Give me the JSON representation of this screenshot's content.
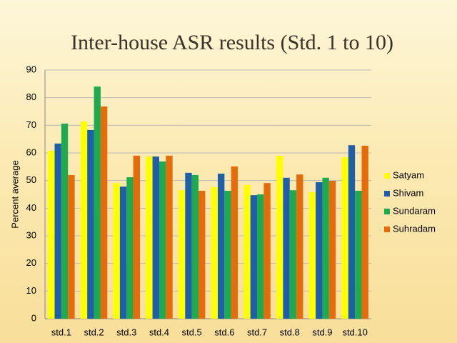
{
  "chart_data": {
    "type": "bar",
    "title": "Inter-house ASR results (Std. 1 to 10)",
    "y_label": "Percent  average",
    "categories": [
      "std.1",
      "std.2",
      "std.3",
      "std.4",
      "std.5",
      "std.6",
      "std.7",
      "std.8",
      "std.9",
      "std.10"
    ],
    "series": [
      {
        "name": "Satyam",
        "color": "#ffff00",
        "values": [
          60.8,
          71.4,
          49.1,
          58.7,
          46.5,
          47.6,
          48.4,
          59,
          45.8,
          58.4
        ]
      },
      {
        "name": "Shivam",
        "color": "#1f5fa8",
        "values": [
          63.4,
          68.3,
          47.8,
          58.7,
          52.8,
          52.5,
          44.7,
          51,
          49.4,
          62.8
        ]
      },
      {
        "name": "Sundaram",
        "color": "#1faa50",
        "values": [
          70.6,
          84,
          51.2,
          56.9,
          52,
          46.3,
          45,
          46.5,
          51,
          46.3
        ]
      },
      {
        "name": "Suhradam",
        "color": "#e46c0a",
        "values": [
          52,
          76.8,
          59,
          59,
          46.3,
          55.1,
          49.1,
          52.2,
          49.9,
          62.6
        ]
      }
    ],
    "ylim": [
      0,
      90
    ],
    "yticks": [
      0,
      10,
      20,
      30,
      40,
      50,
      60,
      70,
      80,
      90
    ],
    "grid": true,
    "legend": "right"
  }
}
